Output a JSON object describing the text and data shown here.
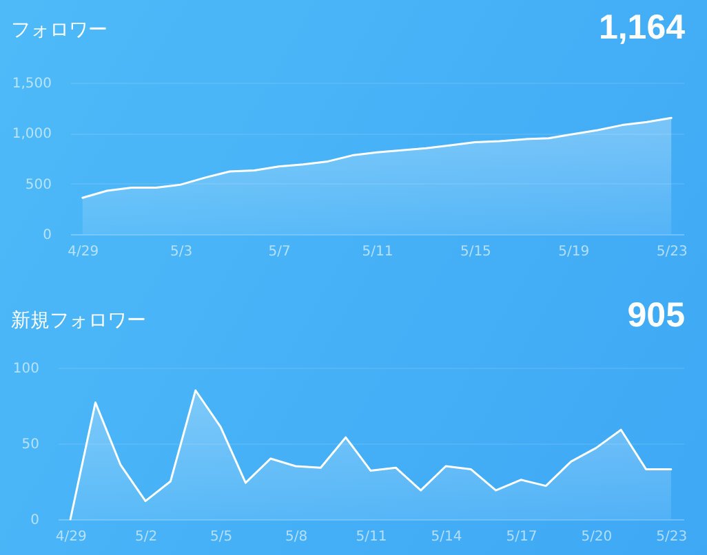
{
  "chart_data": [
    {
      "type": "area",
      "title": "フォロワー",
      "annotations": [
        "1,164"
      ],
      "x": [
        "--04-29",
        "--04-30",
        "--05-01",
        "--05-02",
        "--05-03",
        "--05-04",
        "--05-05",
        "--05-06",
        "--05-07",
        "--05-08",
        "--05-09",
        "--05-10",
        "--05-11",
        "--05-12",
        "--05-13",
        "--05-14",
        "--05-15",
        "--05-16",
        "--05-17",
        "--05-18",
        "--05-19",
        "--05-20",
        "--05-21",
        "--05-22",
        "--05-23"
      ],
      "xlim": [
        "--04-28T12:00",
        "--05-23T12:00"
      ],
      "xticks": [
        {
          "value": "--04-29",
          "label": "4/29"
        },
        {
          "value": "--05-03",
          "label": "5/3"
        },
        {
          "value": "--05-07",
          "label": "5/7"
        },
        {
          "value": "--05-11",
          "label": "5/11"
        },
        {
          "value": "--05-15",
          "label": "5/15"
        },
        {
          "value": "--05-19",
          "label": "5/19"
        },
        {
          "value": "--05-23",
          "label": "5/23"
        }
      ],
      "ylim": [
        0,
        1500
      ],
      "yticks": [
        0,
        500,
        {
          "value": 1000,
          "label": "1,000"
        },
        {
          "value": 1500,
          "label": "1,500"
        }
      ],
      "grid": "y",
      "series": [
        {
          "color": "#ffffff",
          "values": [
            360,
            430,
            460,
            460,
            490,
            560,
            620,
            630,
            670,
            690,
            720,
            780,
            810,
            830,
            850,
            880,
            910,
            920,
            940,
            950,
            990,
            1030,
            1080,
            1110,
            1150
          ]
        }
      ]
    },
    {
      "type": "area",
      "title": "新規フォロワー",
      "annotations": [
        "905"
      ],
      "x": [
        "--04-29",
        "--04-30",
        "--05-01",
        "--05-02",
        "--05-03",
        "--05-04",
        "--05-05",
        "--05-06",
        "--05-07",
        "--05-08",
        "--05-09",
        "--05-10",
        "--05-11",
        "--05-12",
        "--05-13",
        "--05-14",
        "--05-15",
        "--05-16",
        "--05-17",
        "--05-18",
        "--05-19",
        "--05-20",
        "--05-21",
        "--05-22",
        "--05-23"
      ],
      "xlim": [
        "--04-28T12:00",
        "--05-23T12:00"
      ],
      "xticks": [
        {
          "value": "--04-29",
          "label": "4/29"
        },
        {
          "value": "--05-02",
          "label": "5/2"
        },
        {
          "value": "--05-05",
          "label": "5/5"
        },
        {
          "value": "--05-08",
          "label": "5/8"
        },
        {
          "value": "--05-11",
          "label": "5/11"
        },
        {
          "value": "--05-14",
          "label": "5/14"
        },
        {
          "value": "--05-17",
          "label": "5/17"
        },
        {
          "value": "--05-20",
          "label": "5/20"
        },
        {
          "value": "--05-23",
          "label": "5/23"
        }
      ],
      "ylim": [
        0,
        100
      ],
      "yticks": [
        0,
        50,
        100
      ],
      "grid": "y",
      "series": [
        {
          "color": "#ffffff",
          "values": [
            0,
            77,
            36,
            12,
            25,
            85,
            61,
            24,
            40,
            35,
            34,
            54,
            32,
            34,
            19,
            35,
            33,
            19,
            26,
            22,
            38,
            47,
            59,
            33,
            33
          ]
        }
      ]
    }
  ]
}
